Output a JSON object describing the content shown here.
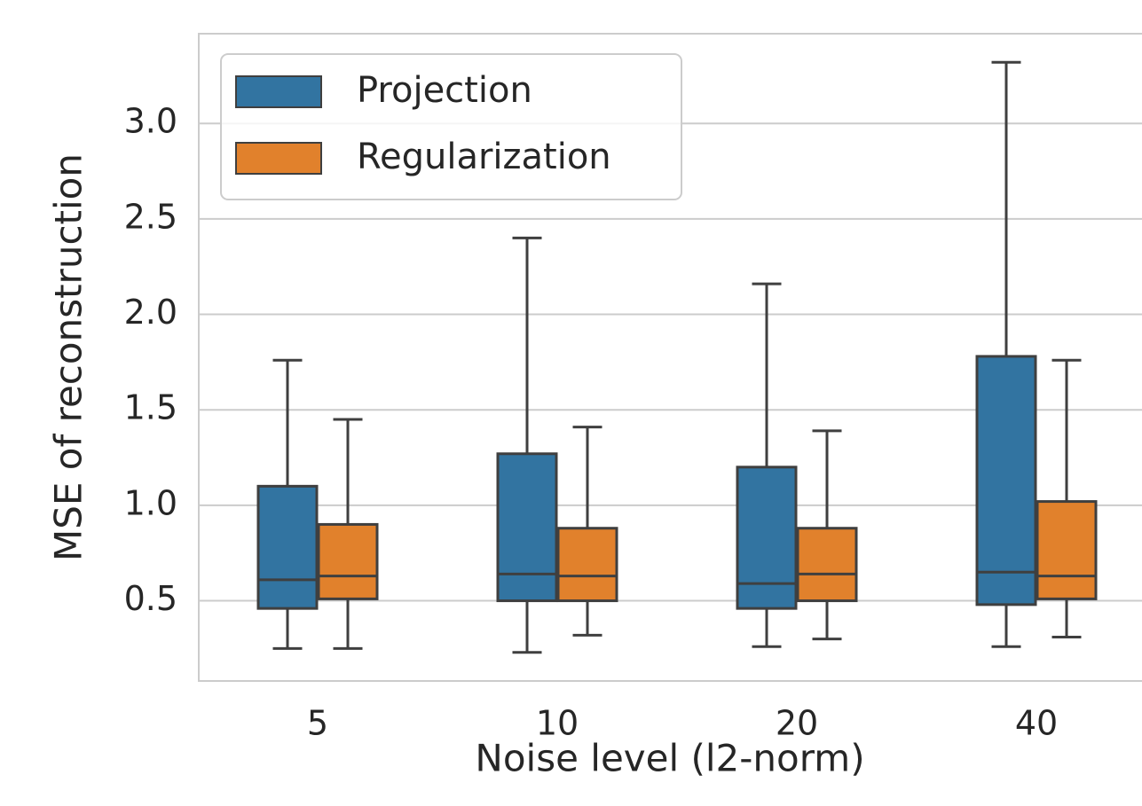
{
  "chart_data": {
    "type": "box",
    "xlabel": "Noise level (l2-norm)",
    "ylabel": "MSE of reconstruction",
    "categories": [
      "5",
      "10",
      "20",
      "40"
    ],
    "series": [
      {
        "name": "Projection",
        "color": "#3274a1",
        "whislo": [
          0.25,
          0.23,
          0.26,
          0.26
        ],
        "q1": [
          0.46,
          0.5,
          0.46,
          0.48
        ],
        "med": [
          0.61,
          0.64,
          0.59,
          0.65
        ],
        "q3": [
          1.1,
          1.27,
          1.2,
          1.78
        ],
        "whishi": [
          1.76,
          2.4,
          2.16,
          3.32
        ]
      },
      {
        "name": "Regularization",
        "color": "#e1812c",
        "whislo": [
          0.25,
          0.32,
          0.3,
          0.31
        ],
        "q1": [
          0.51,
          0.5,
          0.5,
          0.51
        ],
        "med": [
          0.63,
          0.63,
          0.64,
          0.63
        ],
        "q3": [
          0.9,
          0.88,
          0.88,
          1.02
        ],
        "whishi": [
          1.45,
          1.41,
          1.39,
          1.76
        ]
      }
    ],
    "ylim": [
      0.08,
      3.47
    ],
    "yticks": [
      0.5,
      {
        "value": 1,
        "label": "1.0"
      },
      1.5,
      {
        "value": 2,
        "label": "2.0"
      },
      2.5,
      {
        "value": 3,
        "label": "3.0"
      }
    ],
    "grid": true,
    "legend": "upper left"
  }
}
